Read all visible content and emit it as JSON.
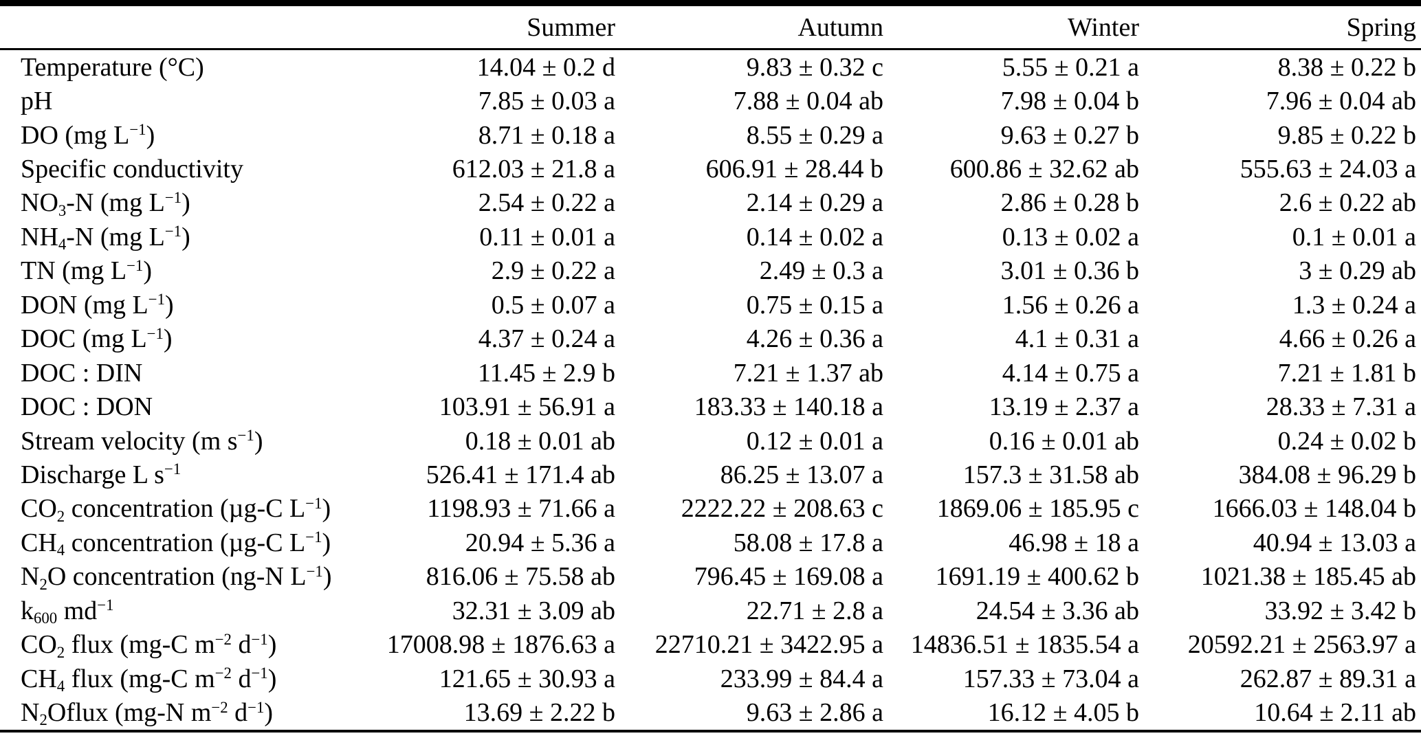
{
  "table": {
    "columns": [
      "",
      "Summer",
      "Autumn",
      "Winter",
      "Spring"
    ],
    "rows": [
      {
        "label": "Temperature (°C)",
        "values": [
          "14.04 ± 0.2 d",
          "9.83 ± 0.32 c",
          "5.55 ± 0.21 a",
          "8.38 ± 0.22 b"
        ]
      },
      {
        "label": "pH",
        "values": [
          "7.85 ± 0.03 a",
          "7.88 ± 0.04 ab",
          "7.98 ± 0.04 b",
          "7.96 ± 0.04 ab"
        ]
      },
      {
        "label": "DO (mg L<sup>−1</sup>)",
        "values": [
          "8.71 ± 0.18 a",
          "8.55 ± 0.29 a",
          "9.63 ± 0.27 b",
          "9.85 ± 0.22 b"
        ]
      },
      {
        "label": "Specific conductivity",
        "values": [
          "612.03 ± 21.8 a",
          "606.91 ± 28.44 b",
          "600.86 ± 32.62 ab",
          "555.63 ± 24.03 a"
        ]
      },
      {
        "label": "NO<sub>3</sub>-N (mg L<sup>−1</sup>)",
        "values": [
          "2.54 ± 0.22 a",
          "2.14 ± 0.29 a",
          "2.86 ± 0.28 b",
          "2.6 ± 0.22 ab"
        ]
      },
      {
        "label": "NH<sub>4</sub>-N (mg L<sup>−1</sup>)",
        "values": [
          "0.11 ± 0.01 a",
          "0.14 ± 0.02 a",
          "0.13 ± 0.02 a",
          "0.1 ± 0.01 a"
        ]
      },
      {
        "label": "TN (mg L<sup>−1</sup>)",
        "values": [
          "2.9 ± 0.22 a",
          "2.49 ± 0.3 a",
          "3.01 ± 0.36 b",
          "3 ± 0.29 ab"
        ]
      },
      {
        "label": "DON (mg L<sup>−1</sup>)",
        "values": [
          "0.5 ± 0.07 a",
          "0.75 ± 0.15 a",
          "1.56 ± 0.26 a",
          "1.3 ± 0.24 a"
        ]
      },
      {
        "label": "DOC (mg L<sup>−1</sup>)",
        "values": [
          "4.37 ± 0.24 a",
          "4.26 ± 0.36 a",
          "4.1 ± 0.31 a",
          "4.66 ± 0.26 a"
        ]
      },
      {
        "label": "DOC : DIN",
        "values": [
          "11.45 ± 2.9 b",
          "7.21 ± 1.37 ab",
          "4.14 ± 0.75 a",
          "7.21 ± 1.81 b"
        ]
      },
      {
        "label": "DOC : DON",
        "values": [
          "103.91 ± 56.91 a",
          "183.33 ± 140.18 a",
          "13.19 ± 2.37 a",
          "28.33 ± 7.31 a"
        ]
      },
      {
        "label": "Stream velocity (m s<sup>−1</sup>)",
        "values": [
          "0.18 ± 0.01 ab",
          "0.12 ± 0.01 a",
          "0.16 ± 0.01 ab",
          "0.24 ± 0.02 b"
        ]
      },
      {
        "label": "Discharge L s<sup>−1</sup>",
        "values": [
          "526.41 ± 171.4 ab",
          "86.25 ± 13.07 a",
          "157.3 ± 31.58 ab",
          "384.08 ± 96.29 b"
        ]
      },
      {
        "label": "CO<sub>2</sub> concentration (µg-C L<sup>−1</sup>)",
        "values": [
          "1198.93 ± 71.66 a",
          "2222.22 ± 208.63 c",
          "1869.06 ± 185.95 c",
          "1666.03 ± 148.04 b"
        ]
      },
      {
        "label": "CH<sub>4</sub> concentration (µg-C L<sup>−1</sup>)",
        "values": [
          "20.94 ± 5.36 a",
          "58.08 ± 17.8 a",
          "46.98 ± 18 a",
          "40.94 ± 13.03 a"
        ]
      },
      {
        "label": "N<sub>2</sub>O concentration (ng-N L<sup>−1</sup>)",
        "values": [
          "816.06 ± 75.58 ab",
          "796.45 ± 169.08 a",
          "1691.19 ± 400.62 b",
          "1021.38 ± 185.45 ab"
        ]
      },
      {
        "label": "k<sub>600</sub> md<sup>−1</sup>",
        "values": [
          "32.31 ± 3.09 ab",
          "22.71 ± 2.8 a",
          "24.54 ± 3.36 ab",
          "33.92 ± 3.42 b"
        ]
      },
      {
        "label": "CO<sub>2</sub> flux (mg-C m<sup>−2</sup> d<sup>−1</sup>)",
        "values": [
          "17008.98 ± 1876.63 a",
          "22710.21 ± 3422.95 a",
          "14836.51 ± 1835.54 a",
          "20592.21 ± 2563.97 a"
        ]
      },
      {
        "label": "CH<sub>4</sub> flux (mg-C m<sup>−2</sup> d<sup>−1</sup>)",
        "values": [
          "121.65 ± 30.93 a",
          "233.99 ± 84.4 a",
          "157.33 ± 73.04 a",
          "262.87 ± 89.31 a"
        ]
      },
      {
        "label": "N<sub>2</sub>Oflux (mg-N m<sup>−2</sup> d<sup>−1</sup>)",
        "values": [
          "13.69 ± 2.22 b",
          "9.63 ± 2.86 a",
          "16.12 ± 4.05 b",
          "10.64 ± 2.11 ab"
        ]
      }
    ]
  },
  "colors": {
    "text": "#000000",
    "background": "#ffffff",
    "rule": "#000000"
  }
}
